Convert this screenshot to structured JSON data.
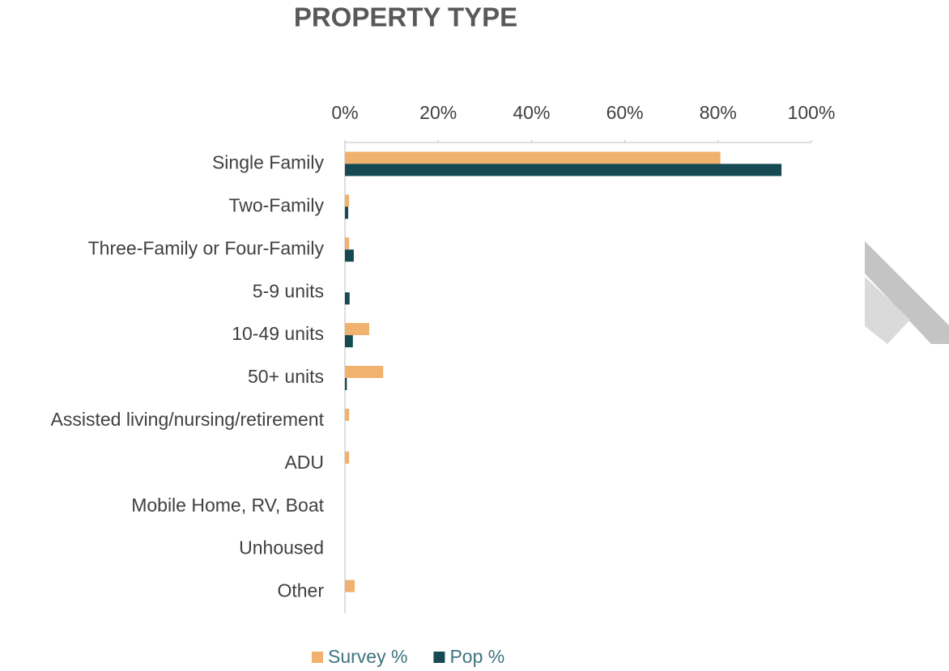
{
  "chart_data": {
    "type": "bar",
    "orientation": "horizontal",
    "title": "PROPERTY TYPE",
    "categories": [
      "Single Family",
      "Two-Family",
      "Three-Family or Four-Family",
      "5-9 units",
      "10-49 units",
      "50+ units",
      "Assisted living/nursing/retirement",
      "ADU",
      "Mobile Home, RV, Boat",
      "Unhoused",
      "Other"
    ],
    "series": [
      {
        "name": "Survey %",
        "color": "#f0b26e",
        "values": [
          80.5,
          0.9,
          0.9,
          0,
          5.2,
          8.2,
          0.9,
          0.9,
          0,
          0,
          2.1
        ]
      },
      {
        "name": "Pop %",
        "color": "#154a55",
        "values": [
          93.6,
          0.7,
          1.9,
          1.0,
          1.7,
          0.4,
          0,
          0,
          0,
          0,
          0
        ]
      }
    ],
    "xlim": [
      0,
      100
    ],
    "xticks": [
      {
        "value": 0,
        "label": "0%"
      },
      {
        "value": 20,
        "label": "20%"
      },
      {
        "value": 40,
        "label": "40%"
      },
      {
        "value": 60,
        "label": "60%"
      },
      {
        "value": 80,
        "label": "80%"
      },
      {
        "value": 100,
        "label": "100%"
      }
    ],
    "legend": "bottom"
  }
}
